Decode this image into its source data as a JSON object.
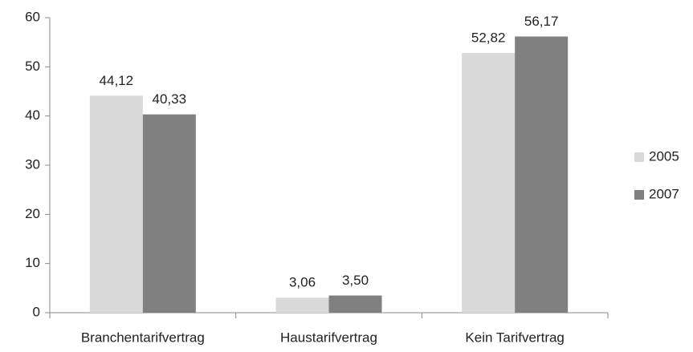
{
  "chart_data": {
    "type": "bar",
    "categories": [
      "Branchentarifvertrag",
      "Haustarifvertrag",
      "Kein Tarifvertrag"
    ],
    "series": [
      {
        "name": "2005",
        "color": "#d9d9d9",
        "values": [
          44.12,
          3.06,
          52.82
        ],
        "value_labels": [
          "44,12",
          "3,06",
          "52,82"
        ]
      },
      {
        "name": "2007",
        "color": "#808080",
        "values": [
          40.33,
          3.5,
          56.17
        ],
        "value_labels": [
          "40,33",
          "3,50",
          "56,17"
        ]
      }
    ],
    "ylim": [
      0,
      60
    ],
    "yticks": [
      0,
      10,
      20,
      30,
      40,
      50,
      60
    ],
    "grid": false,
    "legend": "right"
  }
}
